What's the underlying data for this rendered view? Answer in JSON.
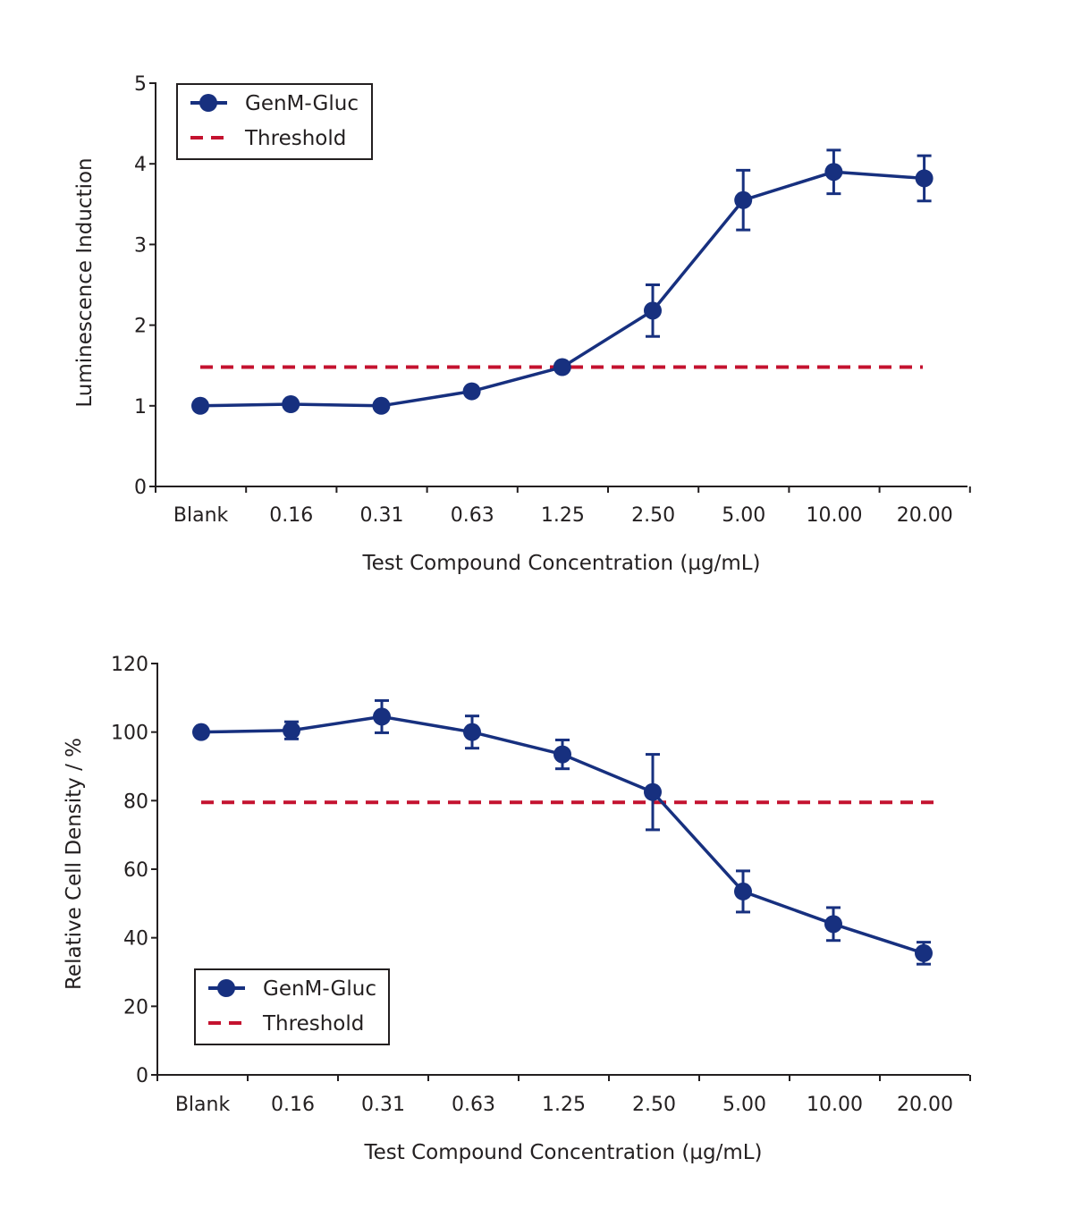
{
  "colors": {
    "series": "#17307f",
    "threshold": "#c4122f",
    "axis": "#231f20"
  },
  "chart_data": [
    {
      "type": "line",
      "title": "",
      "xlabel": "Test Compound Concentration (µg/mL)",
      "ylabel": "Luminescence Induction",
      "categories": [
        "Blank",
        "0.16",
        "0.31",
        "0.63",
        "1.25",
        "2.50",
        "5.00",
        "10.00",
        "20.00"
      ],
      "ylim": [
        0,
        5
      ],
      "yticks": [
        0,
        1,
        2,
        3,
        4,
        5
      ],
      "grid": false,
      "legend_position": "top-left",
      "series": [
        {
          "name": "GenM-Gluc",
          "values": [
            1.0,
            1.02,
            1.0,
            1.18,
            1.48,
            2.18,
            3.55,
            3.9,
            3.82
          ],
          "errors": [
            0,
            0,
            0,
            0,
            0,
            0.32,
            0.37,
            0.27,
            0.28
          ]
        }
      ],
      "threshold": {
        "name": "Threshold",
        "value": 1.48
      }
    },
    {
      "type": "line",
      "title": "",
      "xlabel": "Test Compound Concentration (µg/mL)",
      "ylabel": "Relative Cell Density / %",
      "categories": [
        "Blank",
        "0.16",
        "0.31",
        "0.63",
        "1.25",
        "2.50",
        "5.00",
        "10.00",
        "20.00"
      ],
      "ylim": [
        0,
        120
      ],
      "yticks": [
        0,
        20,
        40,
        60,
        80,
        100,
        120
      ],
      "grid": false,
      "legend_position": "bottom-left",
      "series": [
        {
          "name": "GenM-Gluc",
          "values": [
            100,
            100.5,
            104.5,
            100,
            93.5,
            82.5,
            53.5,
            44,
            35.5
          ],
          "errors": [
            0,
            2.5,
            4.7,
            4.7,
            4.2,
            11,
            6,
            4.8,
            3.2
          ]
        }
      ],
      "threshold": {
        "name": "Threshold",
        "value": 79.5
      }
    }
  ]
}
